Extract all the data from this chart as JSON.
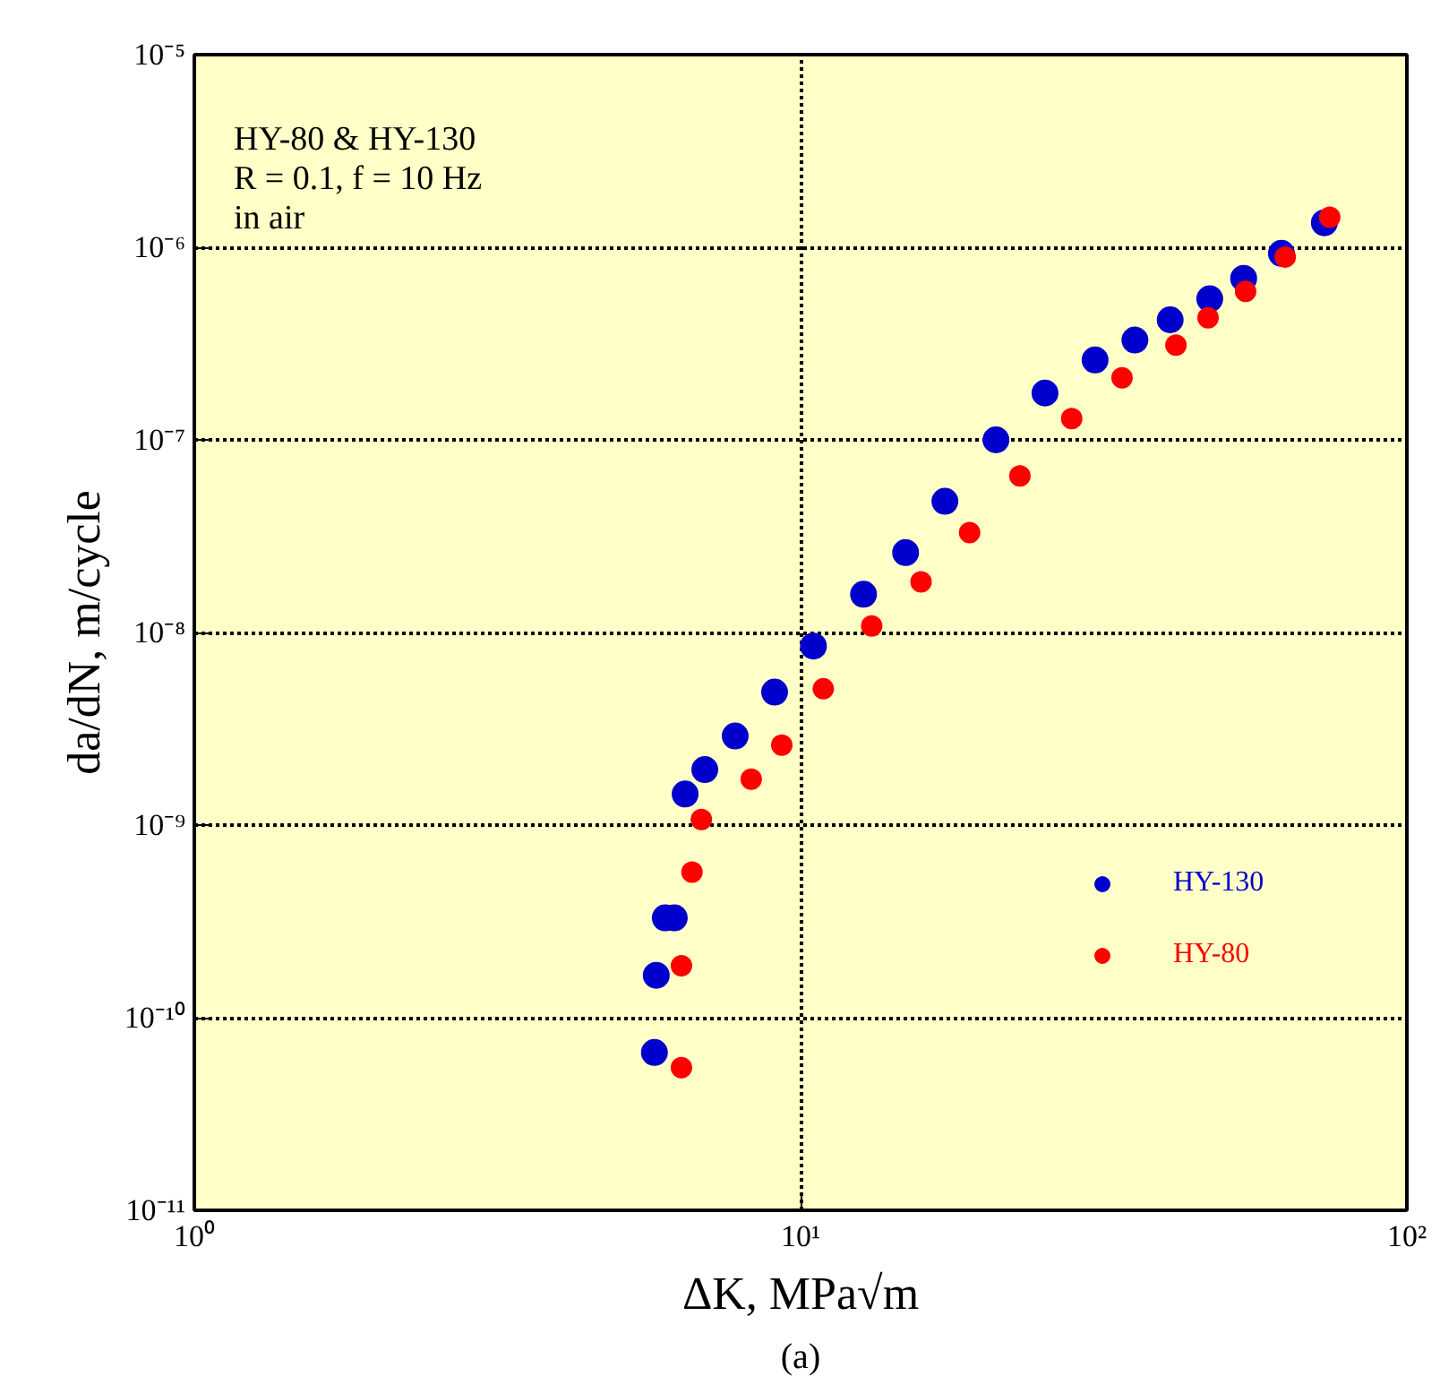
{
  "chart_data": {
    "type": "scatter",
    "xlabel": "ΔK, MPa√m",
    "ylabel": "da/dN, m/cycle",
    "log": "xy",
    "xlim": [
      1,
      100
    ],
    "ylim": [
      1e-11,
      1e-05
    ],
    "xticks": [
      {
        "value": 1,
        "label": "10⁰"
      },
      {
        "value": 10,
        "label": "10¹"
      },
      {
        "value": 100,
        "label": "10²"
      }
    ],
    "yticks": [
      {
        "value": 1e-11,
        "label": "10⁻¹¹"
      },
      {
        "value": 1e-10,
        "label": "10⁻¹⁰"
      },
      {
        "value": 1e-09,
        "label": "10⁻⁹"
      },
      {
        "value": 1e-08,
        "label": "10⁻⁸"
      },
      {
        "value": 1e-07,
        "label": "10⁻⁷"
      },
      {
        "value": 1e-06,
        "label": "10⁻⁶"
      },
      {
        "value": 1e-05,
        "label": "10⁻⁵"
      }
    ],
    "grid": true,
    "legend": "bottom right",
    "marker": "circle",
    "annotations": [
      "HY-80 & HY-130",
      "R = 0.1, f = 10 Hz",
      "in air",
      "(a)"
    ],
    "series": [
      {
        "name": "HY-130",
        "color": "#0000cc",
        "x": [
          5.74,
          5.78,
          5.98,
          6.19,
          6.45,
          6.95,
          7.8,
          9.06,
          10.5,
          12.7,
          14.9,
          17.3,
          21.0,
          25.3,
          30.6,
          35.6,
          40.7,
          47.3,
          53.8,
          62.1,
          73.1
        ],
        "values": [
          6.6e-11,
          1.66e-10,
          3.3e-10,
          3.3e-10,
          1.45e-09,
          1.94e-09,
          2.9e-09,
          4.9e-09,
          8.5e-09,
          1.58e-08,
          2.6e-08,
          4.8e-08,
          1e-07,
          1.75e-07,
          2.6e-07,
          3.3e-07,
          4.2e-07,
          5.4e-07,
          6.9e-07,
          9.3e-07,
          1.34e-06
        ]
      },
      {
        "name": "HY-80",
        "color": "#ff0000",
        "x": [
          6.36,
          6.36,
          6.62,
          6.86,
          8.29,
          9.31,
          10.9,
          13.1,
          15.8,
          19.0,
          23.0,
          28.0,
          33.9,
          41.6,
          47.0,
          54.2,
          63.0,
          74.6
        ],
        "values": [
          5.5e-11,
          1.86e-10,
          5.7e-10,
          1.07e-09,
          1.73e-09,
          2.6e-09,
          5.1e-09,
          1.08e-08,
          1.83e-08,
          3.3e-08,
          6.5e-08,
          1.29e-07,
          2.1e-07,
          3.1e-07,
          4.3e-07,
          5.9e-07,
          8.9e-07,
          1.43e-06
        ]
      }
    ]
  }
}
